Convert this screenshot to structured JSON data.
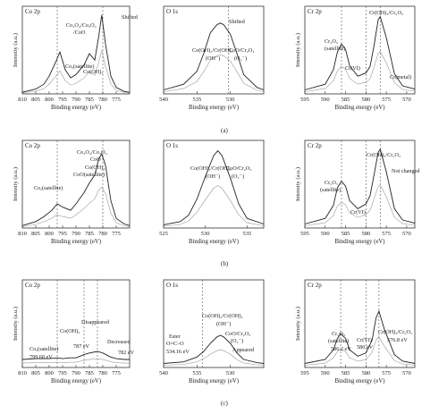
{
  "figure": {
    "row_labels": [
      "(a)",
      "(b)",
      "(c)"
    ]
  },
  "chart_data": [
    {
      "type": "line",
      "title": "Co 2p",
      "xlabel": "Binding energy (eV)",
      "ylabel": "Intensity (a.u.)",
      "xlim": [
        810,
        770
      ],
      "xticks": [
        810,
        805,
        800,
        795,
        790,
        785,
        780,
        775
      ],
      "series": [
        {
          "x": [
            810,
            805,
            802,
            800,
            797.5,
            796,
            794,
            792,
            790,
            787,
            785,
            783,
            781.5,
            780.4,
            779,
            777,
            775,
            772,
            770
          ],
          "values": [
            0.02,
            0.06,
            0.12,
            0.22,
            0.4,
            0.52,
            0.3,
            0.2,
            0.24,
            0.36,
            0.5,
            0.42,
            0.72,
            0.98,
            0.62,
            0.22,
            0.08,
            0.03,
            0.02
          ]
        }
      ],
      "annotations": [
        "Co3O4/Co3O4/CoO",
        "Shifted",
        "Cox(satellite)",
        "Co(OH)2"
      ],
      "dashed_lines": [
        797,
        780
      ]
    },
    {
      "type": "line",
      "title": "O 1s",
      "xlabel": "Binding energy (eV)",
      "ylabel": "",
      "xlim": [
        540,
        525
      ],
      "xticks": [
        540,
        535,
        530
      ],
      "series": [
        {
          "x": [
            540,
            537,
            535,
            534,
            533,
            532,
            531.5,
            531,
            530,
            529,
            528,
            526,
            525
          ],
          "values": [
            0.05,
            0.12,
            0.28,
            0.5,
            0.76,
            0.86,
            0.88,
            0.86,
            0.74,
            0.5,
            0.24,
            0.08,
            0.05
          ]
        }
      ],
      "annotations": [
        "Co(OH)2/Cr(OH)3 (OH⁻)",
        "CoO/Cr2O3 (O2⁻)",
        "Shifted"
      ],
      "dashed_lines": [
        530.3
      ]
    },
    {
      "type": "line",
      "title": "Cr 2p",
      "xlabel": "Binding energy (eV)",
      "ylabel": "Intensity (a.u.)",
      "xlim": [
        595,
        568
      ],
      "xticks": [
        595,
        590,
        585,
        580,
        575,
        570
      ],
      "series": [
        {
          "x": [
            595,
            590,
            588,
            587,
            586,
            585,
            584,
            582,
            580,
            579,
            578,
            577,
            576.5,
            575,
            573,
            571,
            568
          ],
          "values": [
            0.05,
            0.12,
            0.3,
            0.52,
            0.62,
            0.55,
            0.35,
            0.22,
            0.26,
            0.34,
            0.6,
            0.92,
            0.96,
            0.7,
            0.25,
            0.1,
            0.06
          ]
        }
      ],
      "annotations": [
        "Cr(OH)3/Cr2O3",
        "Cr2O3 (satellite)",
        "Cr(VI)",
        "Cr(metal)"
      ],
      "dashed_lines": [
        586,
        580,
        576.5
      ]
    },
    {
      "type": "line",
      "title": "Co 2p",
      "xlabel": "Binding energy (eV)",
      "ylabel": "Intensity (a.u.)",
      "xlim": [
        810,
        770
      ],
      "xticks": [
        810,
        805,
        800,
        795,
        790,
        785,
        780,
        775
      ],
      "series": [
        {
          "x": [
            810,
            805,
            802,
            799,
            797,
            795,
            792,
            790,
            787,
            785,
            783,
            781.5,
            780.4,
            779,
            777,
            775,
            772,
            770
          ],
          "values": [
            0.03,
            0.08,
            0.14,
            0.22,
            0.3,
            0.26,
            0.22,
            0.3,
            0.44,
            0.56,
            0.66,
            0.86,
            0.92,
            0.78,
            0.34,
            0.12,
            0.05,
            0.03
          ]
        }
      ],
      "annotations": [
        "Co3O4/Co3O4 CoO",
        "Cox(satellite)",
        "Co(OH)2",
        "CoO(satellite)"
      ],
      "dashed_lines": [
        797,
        780
      ]
    },
    {
      "type": "line",
      "title": "O 1s",
      "xlabel": "Binding energy (eV)",
      "ylabel": "",
      "xlim": [
        525,
        537
      ],
      "xticks": [
        525,
        530,
        535
      ],
      "series": [
        {
          "x": [
            525,
            527,
            528,
            529,
            530,
            531,
            531.5,
            532,
            533,
            534,
            535,
            537
          ],
          "values": [
            0.04,
            0.08,
            0.16,
            0.36,
            0.64,
            0.9,
            0.96,
            0.9,
            0.62,
            0.3,
            0.12,
            0.05
          ]
        }
      ],
      "annotations": [
        "Co(OH)2/Cr(OH)3 (OH⁻)",
        "CoO/Cr2O3 (O2⁻)"
      ],
      "dashed_lines": []
    },
    {
      "type": "line",
      "title": "Cr 2p",
      "xlabel": "Binding energy (eV)",
      "ylabel": "Intensity (a.u.)",
      "xlim": [
        595,
        568
      ],
      "xticks": [
        595,
        590,
        585,
        580,
        575,
        570
      ],
      "series": [
        {
          "x": [
            595,
            590,
            588,
            587,
            586,
            585,
            584,
            582,
            580,
            579,
            578,
            577,
            576.5,
            575,
            573,
            571,
            568
          ],
          "values": [
            0.05,
            0.12,
            0.28,
            0.5,
            0.58,
            0.52,
            0.34,
            0.24,
            0.3,
            0.4,
            0.66,
            0.94,
            0.98,
            0.7,
            0.24,
            0.1,
            0.06
          ]
        }
      ],
      "annotations": [
        "Cr(OH)3/Cr2O3",
        "Not changed",
        "Cr2O3 (satellite)",
        "Cr(VI)"
      ],
      "dashed_lines": [
        586,
        580,
        576.5
      ]
    },
    {
      "type": "line",
      "title": "Co 2p",
      "xlabel": "Binding energy (eV)",
      "ylabel": "Intensity (a.u.)",
      "xlim": [
        810,
        770
      ],
      "xticks": [
        810,
        805,
        800,
        795,
        790,
        785,
        780,
        775
      ],
      "series": [
        {
          "x": [
            810,
            805,
            800,
            797,
            795,
            792,
            790,
            787,
            785,
            782,
            780,
            777,
            775,
            772,
            770
          ],
          "values": [
            0.1,
            0.11,
            0.11,
            0.12,
            0.11,
            0.12,
            0.12,
            0.16,
            0.18,
            0.2,
            0.18,
            0.13,
            0.11,
            0.1,
            0.1
          ]
        }
      ],
      "annotations": [
        "Disappeared",
        "Decreased",
        "Cox(satellite) 799.60 eV",
        "Co(OH)2 787 eV",
        "782 eV"
      ],
      "dashed_lines": [
        797,
        787,
        782
      ]
    },
    {
      "type": "line",
      "title": "O 1s",
      "xlabel": "Binding energy (eV)",
      "ylabel": "",
      "xlim": [
        540,
        525
      ],
      "xticks": [
        540,
        535,
        530
      ],
      "series": [
        {
          "x": [
            540,
            537,
            535,
            534,
            533,
            532,
            531.5,
            531,
            530,
            529,
            528,
            526,
            525
          ],
          "values": [
            0.05,
            0.07,
            0.13,
            0.2,
            0.3,
            0.38,
            0.4,
            0.38,
            0.3,
            0.18,
            0.1,
            0.06,
            0.05
          ]
        }
      ],
      "annotations": [
        "Ester O=C–O 534.16 eV",
        "Co(OH)2/Cr(OH)3 (OH⁻)",
        "CoO/Cr2O3 (O2⁻)",
        "Appeared"
      ],
      "dashed_lines": [
        534.16
      ]
    },
    {
      "type": "line",
      "title": "Cr 2p",
      "xlabel": "Binding energy (eV)",
      "ylabel": "Intensity (a.u.)",
      "xlim": [
        595,
        568
      ],
      "xticks": [
        595,
        590,
        585,
        580,
        575,
        570
      ],
      "series": [
        {
          "x": [
            595,
            590,
            588,
            587,
            586.2,
            585,
            584,
            582,
            580,
            578.5,
            577.5,
            576.8,
            575.5,
            573,
            571,
            568
          ],
          "values": [
            0.05,
            0.1,
            0.22,
            0.36,
            0.42,
            0.36,
            0.22,
            0.14,
            0.18,
            0.34,
            0.62,
            0.7,
            0.48,
            0.16,
            0.08,
            0.05
          ]
        }
      ],
      "annotations": [
        "Cr2O3 (satellite) 586.2 eV",
        "Cr(VI) 580 eV",
        "Cr(OH)3/Cr2O3 576.8 eV"
      ],
      "dashed_lines": [
        586.2,
        580,
        576.8
      ]
    }
  ]
}
